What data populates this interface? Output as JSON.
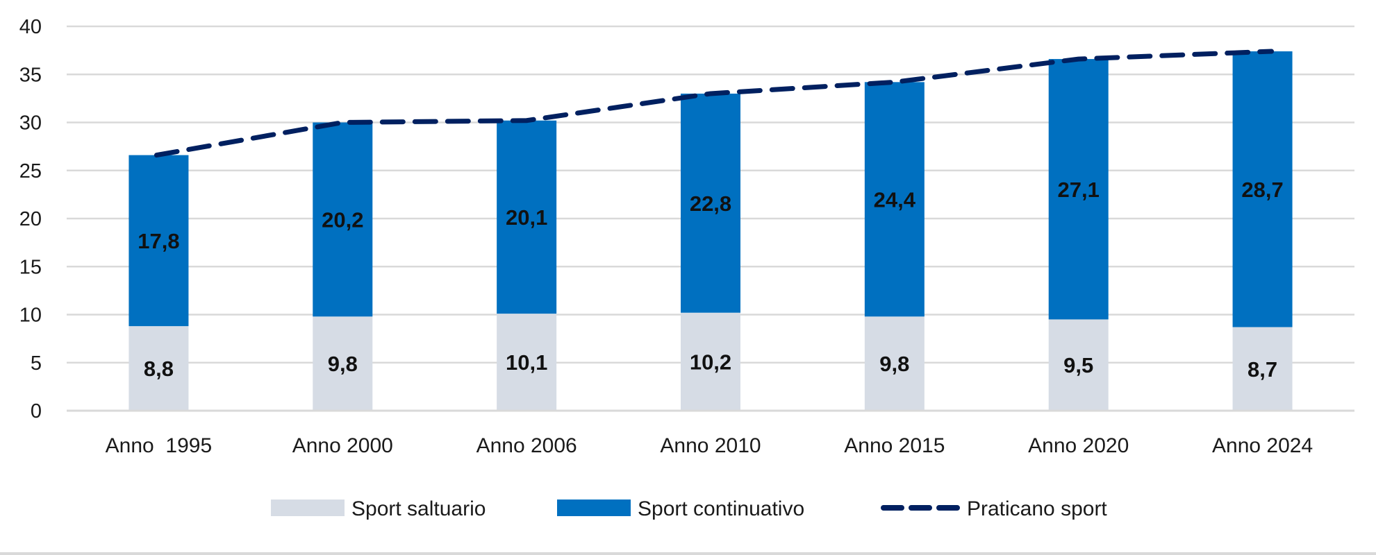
{
  "chart_data": {
    "type": "bar",
    "stacked": true,
    "categories": [
      "Anno  1995",
      "Anno 2000",
      "Anno 2006",
      "Anno 2010",
      "Anno 2015",
      "Anno 2020",
      "Anno 2024"
    ],
    "series": [
      {
        "name": "Sport saltuario",
        "values": [
          8.8,
          9.8,
          10.1,
          10.2,
          9.8,
          9.5,
          8.7
        ],
        "labels": [
          "8,8",
          "9,8",
          "10,1",
          "10,2",
          "9,8",
          "9,5",
          "8,7"
        ],
        "color": "#d6dce5"
      },
      {
        "name": "Sport continuativo",
        "values": [
          17.8,
          20.2,
          20.1,
          22.8,
          24.4,
          27.1,
          28.7
        ],
        "labels": [
          "17,8",
          "20,2",
          "20,1",
          "22,8",
          "24,4",
          "27,1",
          "28,7"
        ],
        "color": "#0070c0"
      }
    ],
    "line_series": {
      "name": "Praticano sport",
      "values": [
        26.6,
        30.0,
        30.2,
        33.0,
        34.2,
        36.6,
        37.4
      ],
      "color": "#002060",
      "style": "dashed"
    },
    "yticks": [
      "0",
      "5",
      "10",
      "15",
      "20",
      "25",
      "30",
      "35",
      "40"
    ],
    "ylim": [
      0,
      40
    ],
    "grid": true,
    "legend_position": "bottom",
    "title": "",
    "xlabel": "",
    "ylabel": ""
  }
}
